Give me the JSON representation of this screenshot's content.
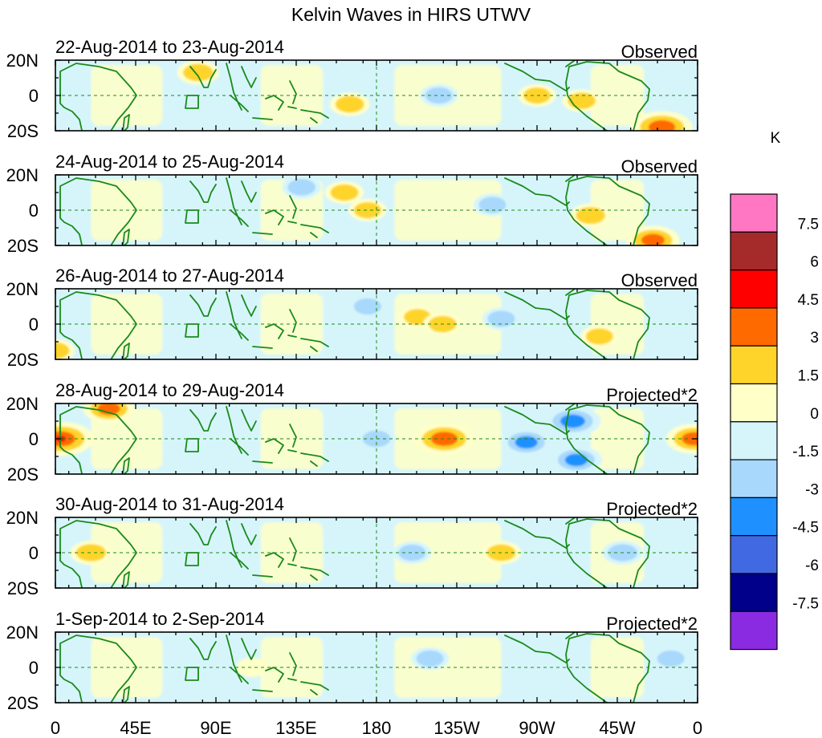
{
  "title": "Kelvin Waves in HIRS UTWV",
  "panels": [
    {
      "date_range": "22-Aug-2014 to 23-Aug-2014",
      "label": "Observed"
    },
    {
      "date_range": "24-Aug-2014 to 25-Aug-2014",
      "label": "Observed"
    },
    {
      "date_range": "26-Aug-2014 to 27-Aug-2014",
      "label": "Observed"
    },
    {
      "date_range": "28-Aug-2014 to 29-Aug-2014",
      "label": "Projected*2"
    },
    {
      "date_range": "30-Aug-2014 to 31-Aug-2014",
      "label": "Projected*2"
    },
    {
      "date_range": "1-Sep-2014 to 2-Sep-2014",
      "label": "Projected*2"
    }
  ],
  "y_ticks": [
    "20N",
    "0",
    "20S"
  ],
  "x_ticks": [
    "0",
    "45E",
    "90E",
    "135E",
    "180",
    "135W",
    "90W",
    "45W",
    "0"
  ],
  "colorbar": {
    "unit": "K",
    "colors": [
      "#ff77c3",
      "#a52a2a",
      "#ff0000",
      "#ff6a00",
      "#ffd42a",
      "#ffffc8",
      "#d6f5fb",
      "#a8d8fc",
      "#1e90ff",
      "#4169e1",
      "#00008b",
      "#8a2be2"
    ],
    "labels": [
      "7.5",
      "6",
      "4.5",
      "3",
      "1.5",
      "0",
      "-1.5",
      "-3",
      "-4.5",
      "-6",
      "-7.5"
    ]
  },
  "chart_data": {
    "type": "heatmap",
    "title": "Kelvin Waves in HIRS UTWV",
    "unit": "K",
    "x_range_deg": [
      0,
      360
    ],
    "y_range_deg": [
      -20,
      20
    ],
    "levels": [
      -7.5,
      -6,
      -4.5,
      -3,
      -1.5,
      0,
      1.5,
      3,
      4.5,
      6,
      7.5
    ],
    "panels": [
      {
        "dates": "22-Aug-2014 to 23-Aug-2014",
        "kind": "Observed",
        "anomalies": [
          {
            "lon": 80,
            "lat": 13,
            "value": 2.0
          },
          {
            "lon": 165,
            "lat": -5,
            "value": 1.8
          },
          {
            "lon": 270,
            "lat": 0,
            "value": 1.6
          },
          {
            "lon": 295,
            "lat": -3,
            "value": 1.7
          },
          {
            "lon": 340,
            "lat": -18,
            "value": 4.0
          },
          {
            "lon": 215,
            "lat": 0,
            "value": -1.6
          }
        ]
      },
      {
        "dates": "24-Aug-2014 to 25-Aug-2014",
        "kind": "Observed",
        "anomalies": [
          {
            "lon": 162,
            "lat": 10,
            "value": 1.7
          },
          {
            "lon": 175,
            "lat": 0,
            "value": 1.6
          },
          {
            "lon": 300,
            "lat": -3,
            "value": 1.9
          },
          {
            "lon": 335,
            "lat": -17,
            "value": 3.2
          },
          {
            "lon": 138,
            "lat": 13,
            "value": -1.7
          },
          {
            "lon": 245,
            "lat": 3,
            "value": -1.6
          }
        ]
      },
      {
        "dates": "26-Aug-2014 to 27-Aug-2014",
        "kind": "Observed",
        "anomalies": [
          {
            "lon": 203,
            "lat": 4,
            "value": 1.6
          },
          {
            "lon": 217,
            "lat": 0,
            "value": 1.7
          },
          {
            "lon": 305,
            "lat": -7,
            "value": 1.6
          },
          {
            "lon": 250,
            "lat": 3,
            "value": -1.6
          },
          {
            "lon": 0,
            "lat": -15,
            "value": 1.7
          },
          {
            "lon": 175,
            "lat": 10,
            "value": -1.6
          }
        ]
      },
      {
        "dates": "28-Aug-2014 to 29-Aug-2014",
        "kind": "Projected*2",
        "anomalies": [
          {
            "lon": 3,
            "lat": 0,
            "value": 4.5
          },
          {
            "lon": 218,
            "lat": 0,
            "value": 4.0
          },
          {
            "lon": 358,
            "lat": 0,
            "value": 3.5
          },
          {
            "lon": 30,
            "lat": 17,
            "value": 3.0
          },
          {
            "lon": 264,
            "lat": -2,
            "value": -3.0
          },
          {
            "lon": 290,
            "lat": 10,
            "value": -3.5
          },
          {
            "lon": 292,
            "lat": -12,
            "value": -3.0
          },
          {
            "lon": 180,
            "lat": 0,
            "value": -1.7
          }
        ]
      },
      {
        "dates": "30-Aug-2014 to 31-Aug-2014",
        "kind": "Projected*2",
        "anomalies": [
          {
            "lon": 20,
            "lat": 0,
            "value": 2.0
          },
          {
            "lon": 250,
            "lat": 0,
            "value": 1.8
          },
          {
            "lon": 318,
            "lat": 0,
            "value": -1.9
          },
          {
            "lon": 200,
            "lat": 0,
            "value": -1.6
          }
        ]
      },
      {
        "dates": "1-Sep-2014 to 2-Sep-2014",
        "kind": "Projected*2",
        "anomalies": [
          {
            "lon": 110,
            "lat": 0,
            "value": 0.8
          },
          {
            "lon": 210,
            "lat": 5,
            "value": -1.6
          },
          {
            "lon": 345,
            "lat": 5,
            "value": -1.6
          }
        ]
      }
    ]
  }
}
